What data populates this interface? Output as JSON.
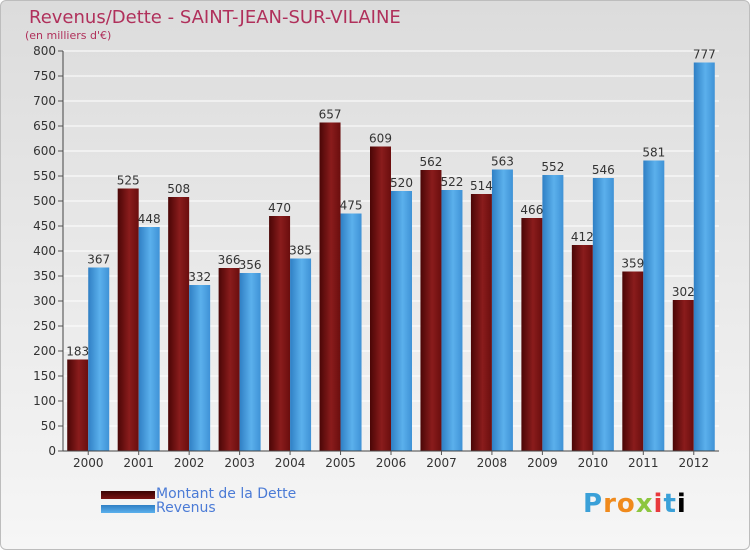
{
  "header": {
    "title": "Revenus/Dette - SAINT-JEAN-SUR-VILAINE",
    "subtitle": "(en milliers d'€)"
  },
  "legend": {
    "dette_label": "Montant de la Dette",
    "revenus_label": "Revenus"
  },
  "logo": {
    "text": "Proxiti"
  },
  "colors": {
    "dette": "#7a1414",
    "revenus": "#4ba3e3",
    "title": "#b0305b",
    "legend_text": "#4b7bd6"
  },
  "chart_data": {
    "type": "bar",
    "categories": [
      "2000",
      "2001",
      "2002",
      "2003",
      "2004",
      "2005",
      "2006",
      "2007",
      "2008",
      "2009",
      "2010",
      "2011",
      "2012"
    ],
    "series": [
      {
        "name": "Montant de la Dette",
        "values": [
          183,
          525,
          508,
          366,
          470,
          657,
          609,
          562,
          514,
          466,
          412,
          359,
          302
        ]
      },
      {
        "name": "Revenus",
        "values": [
          367,
          448,
          332,
          356,
          385,
          475,
          520,
          522,
          563,
          552,
          546,
          581,
          777
        ]
      }
    ],
    "title": "Revenus/Dette - SAINT-JEAN-SUR-VILAINE",
    "ylabel": "(en milliers d'€)",
    "xlabel": "",
    "ylim": [
      0,
      800
    ],
    "yticks": [
      0,
      50,
      100,
      150,
      200,
      250,
      300,
      350,
      400,
      450,
      500,
      550,
      600,
      650,
      700,
      750,
      800
    ],
    "grid": true,
    "legend": "bottom-left"
  }
}
